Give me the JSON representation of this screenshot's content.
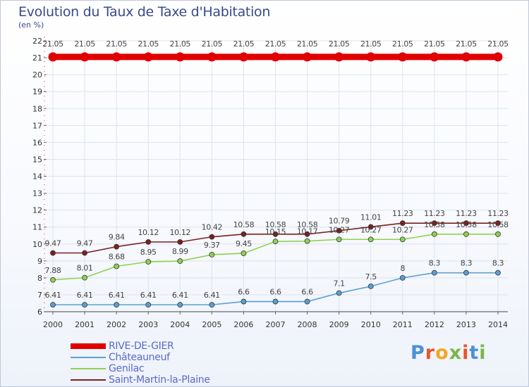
{
  "title": "Evolution du Taux de Taxe d'Habitation",
  "subtitle": "(en %)",
  "brand": {
    "text": "Proxiti",
    "letter_colors": [
      "#4a90d9",
      "#e8552a",
      "#f5a623",
      "#7ab648",
      "#e8552a",
      "#4a90d9",
      "#7ab648"
    ]
  },
  "chart_data": {
    "type": "line",
    "x": [
      "2000",
      "2001",
      "2002",
      "2003",
      "2004",
      "2005",
      "2006",
      "2007",
      "2008",
      "2009",
      "2010",
      "2011",
      "2012",
      "2013",
      "2014"
    ],
    "ylim": [
      6,
      22
    ],
    "yticks": [
      "6",
      "7",
      "8",
      "9",
      "10",
      "11",
      "12",
      "13",
      "14",
      "15",
      "16",
      "17",
      "18",
      "19",
      "20",
      "21",
      "22"
    ],
    "grid": true,
    "legend_position": "bottom-left",
    "series": [
      {
        "name": "RIVE-DE-GIER",
        "color": "#e00000",
        "values": [
          21.05,
          21.05,
          21.05,
          21.05,
          21.05,
          21.05,
          21.05,
          21.05,
          21.05,
          21.05,
          21.05,
          21.05,
          21.05,
          21.05,
          21.05
        ],
        "labels": [
          "21.05",
          "21.05",
          "21.05",
          "21.05",
          "21.05",
          "21.05",
          "21.05",
          "21.05",
          "21.05",
          "21.05",
          "21.05",
          "21.05",
          "21.05",
          "21.05",
          "21.05"
        ]
      },
      {
        "name": "Châteauneuf",
        "color": "#5a9fd4",
        "values": [
          6.41,
          6.41,
          6.41,
          6.41,
          6.41,
          6.41,
          6.6,
          6.6,
          6.6,
          7.1,
          7.5,
          8,
          8.3,
          8.3,
          8.3
        ],
        "labels": [
          "6.41",
          "6.41",
          "6.41",
          "6.41",
          "6.41",
          "6.41",
          "6.6",
          "6.6",
          "6.6",
          "7.1",
          "7.5",
          "8",
          "8.3",
          "8.3",
          "8.3"
        ]
      },
      {
        "name": "Genilac",
        "color": "#8fd14f",
        "values": [
          7.88,
          8.01,
          8.68,
          8.95,
          8.99,
          9.37,
          9.45,
          10.15,
          10.17,
          10.27,
          10.27,
          10.27,
          10.58,
          10.58,
          10.58
        ],
        "labels": [
          "7.88",
          "8.01",
          "8.68",
          "8.95",
          "8.99",
          "9.37",
          "9.45",
          "10.15",
          "10.17",
          "10.27",
          "10.27",
          "10.27",
          "10.58",
          "10.58",
          "10.58"
        ]
      },
      {
        "name": "Saint-Martin-la-Plaine",
        "color": "#7a2020",
        "values": [
          9.47,
          9.47,
          9.84,
          10.12,
          10.12,
          10.42,
          10.58,
          10.58,
          10.58,
          10.79,
          11.01,
          11.23,
          11.23,
          11.23,
          11.23
        ],
        "labels": [
          "9.47",
          "9.47",
          "9.84",
          "10.12",
          "10.12",
          "10.42",
          "10.58",
          "10.58",
          "10.58",
          "10.79",
          "11.01",
          "11.23",
          "11.23",
          "11.23",
          "11.23"
        ]
      }
    ]
  }
}
